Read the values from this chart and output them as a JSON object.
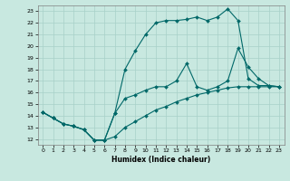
{
  "title": "",
  "xlabel": "Humidex (Indice chaleur)",
  "ylabel": "",
  "background_color": "#c8e8e0",
  "line_color": "#006868",
  "grid_color": "#a8d0c8",
  "xlim": [
    -0.5,
    23.5
  ],
  "ylim": [
    11.5,
    23.5
  ],
  "yticks": [
    12,
    13,
    14,
    15,
    16,
    17,
    18,
    19,
    20,
    21,
    22,
    23
  ],
  "xticks": [
    0,
    1,
    2,
    3,
    4,
    5,
    6,
    7,
    8,
    9,
    10,
    11,
    12,
    13,
    14,
    15,
    16,
    17,
    18,
    19,
    20,
    21,
    22,
    23
  ],
  "series": [
    {
      "x": [
        0,
        1,
        2,
        3,
        4,
        5,
        6,
        7,
        8,
        9,
        10,
        11,
        12,
        13,
        14,
        15,
        16,
        17,
        18,
        19,
        20,
        21,
        22,
        23
      ],
      "y": [
        14.3,
        13.8,
        13.3,
        13.1,
        12.8,
        11.9,
        11.9,
        12.2,
        13.0,
        13.5,
        14.0,
        14.5,
        14.8,
        15.2,
        15.5,
        15.8,
        16.0,
        16.2,
        16.4,
        16.5,
        16.5,
        16.5,
        16.5,
        16.5
      ]
    },
    {
      "x": [
        0,
        1,
        2,
        3,
        4,
        5,
        6,
        7,
        8,
        9,
        10,
        11,
        12,
        13,
        14,
        15,
        16,
        17,
        18,
        19,
        20,
        21,
        22,
        23
      ],
      "y": [
        14.3,
        13.8,
        13.3,
        13.1,
        12.8,
        11.9,
        11.9,
        14.2,
        18.0,
        19.6,
        21.0,
        22.0,
        22.2,
        22.2,
        22.3,
        22.5,
        22.2,
        22.5,
        23.2,
        22.2,
        17.2,
        16.6,
        16.6,
        16.5
      ]
    },
    {
      "x": [
        0,
        1,
        2,
        3,
        4,
        5,
        6,
        7,
        8,
        9,
        10,
        11,
        12,
        13,
        14,
        15,
        16,
        17,
        18,
        19,
        20,
        21,
        22,
        23
      ],
      "y": [
        14.3,
        13.8,
        13.3,
        13.1,
        12.8,
        11.9,
        11.9,
        14.2,
        15.5,
        15.8,
        16.2,
        16.5,
        16.5,
        17.0,
        18.5,
        16.5,
        16.2,
        16.5,
        17.0,
        19.8,
        18.2,
        17.2,
        16.6,
        16.5
      ]
    }
  ]
}
